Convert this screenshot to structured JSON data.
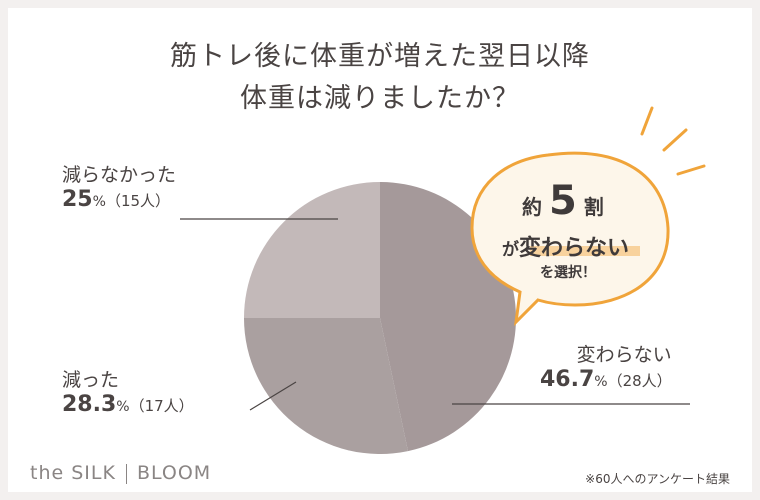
{
  "header": {
    "title_line1": "筋トレ後に体重が増えた翌日以降",
    "title_line2": "体重は減りましたか？"
  },
  "chart_data": {
    "type": "pie",
    "title": "筋トレ後に体重が増えた翌日以降 体重は減りましたか？",
    "slices": [
      {
        "label": "変わらない",
        "percent": 46.7,
        "percent_text": "46.7",
        "count_text": "（28人）",
        "color": "#a5999a"
      },
      {
        "label": "減った",
        "percent": 28.3,
        "percent_text": "28.3",
        "count_text": "（17人）",
        "color": "#aaa0a0"
      },
      {
        "label": "減らなかった",
        "percent": 25,
        "percent_text": "25",
        "count_text": "（15人）",
        "color": "#c3b9b9"
      }
    ],
    "percent_unit": "%",
    "start_angle_deg": 0,
    "direction": "clockwise"
  },
  "badge": {
    "line1_prefix": "約",
    "line1_number": "5",
    "line1_suffix": "割",
    "line2_prefix": "が",
    "line2_highlight": "変わらない",
    "line3": "を選択！",
    "accent_color": "#f0a43a",
    "fill_color": "#fdf6ea"
  },
  "brand": {
    "left": "the SILK",
    "right": "BLOOM"
  },
  "footnote": "※60人へのアンケート結果"
}
